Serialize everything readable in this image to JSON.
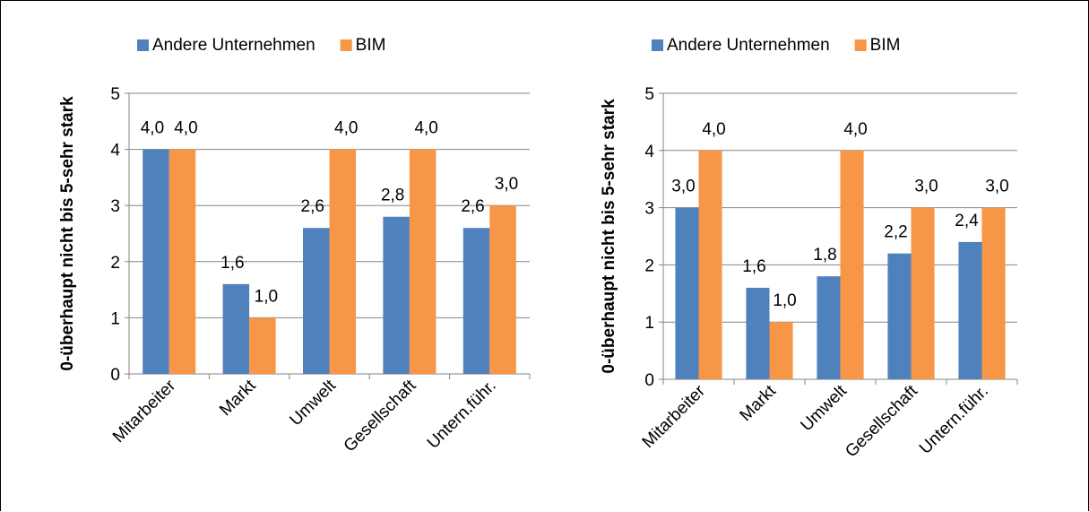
{
  "chart_data": [
    {
      "type": "bar",
      "categories": [
        "Mitarbeiter",
        "Markt",
        "Umwelt",
        "Gesellschaft",
        "Untern.führ."
      ],
      "series": [
        {
          "name": "Andere Unternehmen",
          "color": "#4f81bd",
          "values": [
            4.0,
            1.6,
            2.6,
            2.8,
            2.6
          ],
          "labels": [
            "4,0",
            "1,6",
            "2,6",
            "2,8",
            "2,6"
          ]
        },
        {
          "name": "BIM",
          "color": "#f79646",
          "values": [
            4.0,
            1.0,
            4.0,
            4.0,
            3.0
          ],
          "labels": [
            "4,0",
            "1,0",
            "4,0",
            "4,0",
            "3,0"
          ]
        }
      ],
      "ylabel": "0-überhaupt nicht bis 5-sehr stark",
      "xlabel": "",
      "ylim": [
        0,
        5
      ],
      "yticks": [
        "0",
        "1",
        "2",
        "3",
        "4",
        "5"
      ],
      "grid": true,
      "legend": "top"
    },
    {
      "type": "bar",
      "categories": [
        "Mitarbeiter",
        "Markt",
        "Umwelt",
        "Gesellschaft",
        "Untern.führ."
      ],
      "series": [
        {
          "name": "Andere Unternehmen",
          "color": "#4f81bd",
          "values": [
            3.0,
            1.6,
            1.8,
            2.2,
            2.4
          ],
          "labels": [
            "3,0",
            "1,6",
            "1,8",
            "2,2",
            "2,4"
          ]
        },
        {
          "name": "BIM",
          "color": "#f79646",
          "values": [
            4.0,
            1.0,
            4.0,
            3.0,
            3.0
          ],
          "labels": [
            "4,0",
            "1,0",
            "4,0",
            "3,0",
            "3,0"
          ]
        }
      ],
      "ylabel": "0-überhaupt nicht bis 5-sehr stark",
      "xlabel": "",
      "ylim": [
        0,
        5
      ],
      "yticks": [
        "0",
        "1",
        "2",
        "3",
        "4",
        "5"
      ],
      "grid": true,
      "legend": "top"
    }
  ]
}
